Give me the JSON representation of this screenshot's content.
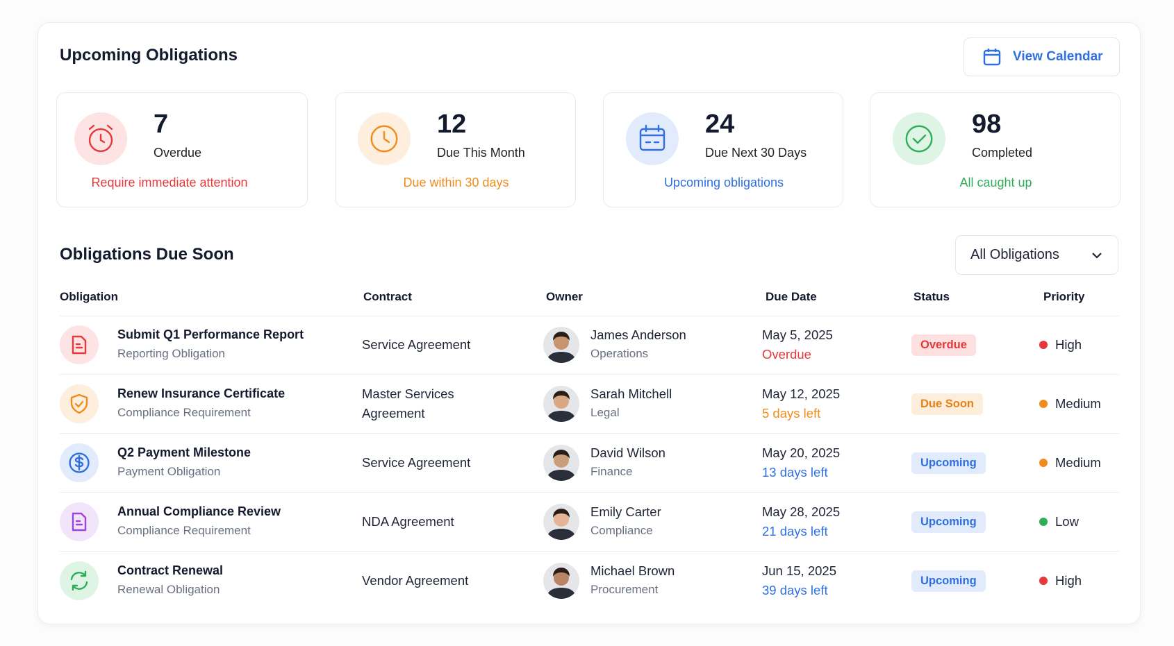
{
  "header": {
    "title": "Upcoming Obligations",
    "button": "View Calendar"
  },
  "stats": [
    {
      "value": 7,
      "label": "Overdue",
      "note": "Require immediate attention",
      "color": "#e5383b",
      "bg": "#fde3e3"
    },
    {
      "value": 12,
      "label": "Due This Month",
      "note": "Due within 30 days",
      "color": "#f08c1c",
      "bg": "#fdeedd"
    },
    {
      "value": 24,
      "label": "Due Next 30 Days",
      "note": "Upcoming obligations",
      "color": "#2f6fe0",
      "bg": "#e2ebfc"
    },
    {
      "value": 98,
      "label": "Completed",
      "note": "All caught up",
      "color": "#2fae5a",
      "bg": "#def4e5"
    }
  ],
  "table": {
    "title": "Obligations Due Soon",
    "filter": "All Obligations",
    "columns": [
      "Obligation",
      "Contract",
      "Owner",
      "Due Date",
      "Status",
      "Priority"
    ],
    "rows": [
      {
        "obligation": "Submit Q1 Performance Report",
        "type": "Reporting Obligation",
        "icon_color": "#e5383b",
        "icon_bg": "#fde3e3",
        "contract": "Service Agreement",
        "owner": "James Anderson",
        "role": "Operations",
        "due_date": "May 5, 2025",
        "due_note": "Overdue",
        "due_color": "#e5383b",
        "status": "Overdue",
        "status_color": "#e5383b",
        "status_bg": "#fde0df",
        "priority": "High",
        "priority_color": "#e5383b"
      },
      {
        "obligation": "Renew Insurance Certificate",
        "type": "Compliance Requirement",
        "icon_color": "#f08c1c",
        "icon_bg": "#fdeedd",
        "contract": "Master Services Agreement",
        "owner": "Sarah Mitchell",
        "role": "Legal",
        "due_date": "May 12, 2025",
        "due_note": "5 days left",
        "due_color": "#f08c1c",
        "status": "Due Soon",
        "status_color": "#e8801a",
        "status_bg": "#fdeedb",
        "priority": "Medium",
        "priority_color": "#f08c1c"
      },
      {
        "obligation": "Q2 Payment Milestone",
        "type": "Payment Obligation",
        "icon_color": "#2f6fe0",
        "icon_bg": "#e2ebfc",
        "contract": "Service Agreement",
        "owner": "David Wilson",
        "role": "Finance",
        "due_date": "May 20, 2025",
        "due_note": "13 days left",
        "due_color": "#2f6fe0",
        "status": "Upcoming",
        "status_color": "#2f6fe0",
        "status_bg": "#e2ebfc",
        "priority": "Medium",
        "priority_color": "#f08c1c"
      },
      {
        "obligation": "Annual Compliance Review",
        "type": "Compliance Requirement",
        "icon_color": "#9a45d8",
        "icon_bg": "#f1e4fb",
        "contract": "NDA Agreement",
        "owner": "Emily Carter",
        "role": "Compliance",
        "due_date": "May 28, 2025",
        "due_note": "21 days left",
        "due_color": "#2f6fe0",
        "status": "Upcoming",
        "status_color": "#2f6fe0",
        "status_bg": "#e2ebfc",
        "priority": "Low",
        "priority_color": "#2fae5a"
      },
      {
        "obligation": "Contract Renewal",
        "type": "Renewal Obligation",
        "icon_color": "#2fae5a",
        "icon_bg": "#def4e5",
        "contract": "Vendor Agreement",
        "owner": "Michael Brown",
        "role": "Procurement",
        "due_date": "Jun 15, 2025",
        "due_note": "39 days left",
        "due_color": "#2f6fe0",
        "status": "Upcoming",
        "status_color": "#2f6fe0",
        "status_bg": "#e2ebfc",
        "priority": "High",
        "priority_color": "#e5383b"
      }
    ]
  }
}
